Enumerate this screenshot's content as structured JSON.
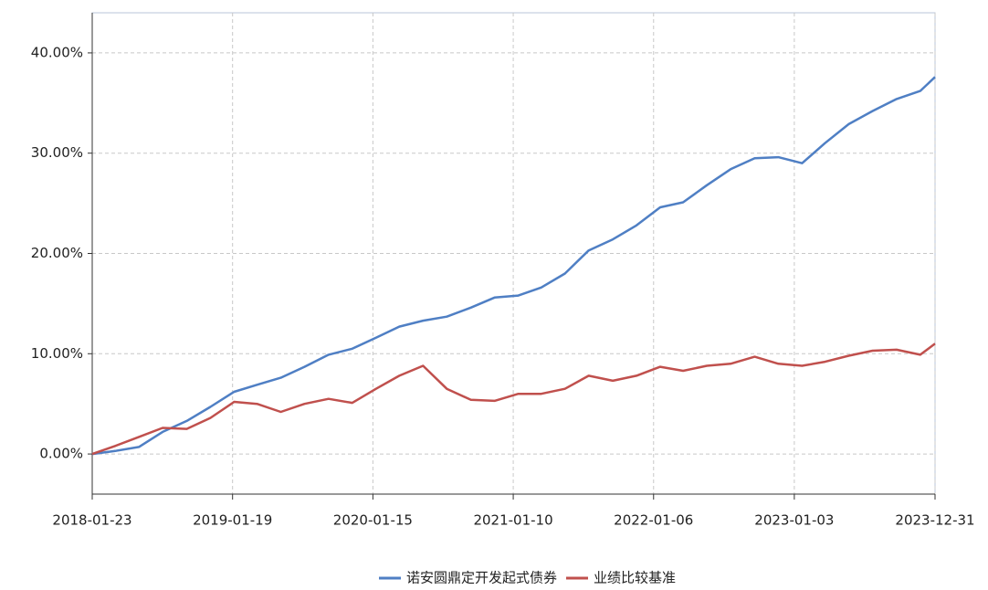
{
  "chart_data": {
    "type": "line",
    "x": [
      "2018-01-23",
      "2018-03-23",
      "2018-05-23",
      "2018-07-23",
      "2018-09-23",
      "2018-11-23",
      "2019-01-23",
      "2019-03-23",
      "2019-05-23",
      "2019-07-23",
      "2019-09-23",
      "2019-11-23",
      "2020-01-23",
      "2020-03-23",
      "2020-05-23",
      "2020-07-23",
      "2020-09-23",
      "2020-11-23",
      "2021-01-23",
      "2021-03-23",
      "2021-05-23",
      "2021-07-23",
      "2021-09-23",
      "2021-11-23",
      "2022-01-23",
      "2022-03-23",
      "2022-05-23",
      "2022-07-23",
      "2022-09-23",
      "2022-11-23",
      "2023-01-23",
      "2023-03-23",
      "2023-05-23",
      "2023-07-23",
      "2023-09-23",
      "2023-11-23",
      "2023-12-31"
    ],
    "series": [
      {
        "name": "诺安圆鼎定开发起式债券",
        "color": "#4f7fc4",
        "values": [
          0,
          0.3,
          0.7,
          2.2,
          3.3,
          4.7,
          6.2,
          6.9,
          7.6,
          8.7,
          9.9,
          10.5,
          11.6,
          12.7,
          13.3,
          13.7,
          14.6,
          15.6,
          15.8,
          16.6,
          18.0,
          20.3,
          21.4,
          22.8,
          24.6,
          25.1,
          26.8,
          28.4,
          29.5,
          29.6,
          29.0,
          31.0,
          32.9,
          34.2,
          35.4,
          36.2,
          37.6
        ]
      },
      {
        "name": "业绩比较基准",
        "color": "#c0504d",
        "values": [
          0,
          0.8,
          1.7,
          2.6,
          2.5,
          3.6,
          5.2,
          5.0,
          4.2,
          5.0,
          5.5,
          5.1,
          6.5,
          7.8,
          8.8,
          6.5,
          5.4,
          5.3,
          6.0,
          6.0,
          6.5,
          7.8,
          7.3,
          7.8,
          8.7,
          8.3,
          8.8,
          9.0,
          9.7,
          9.0,
          8.8,
          9.2,
          9.8,
          10.3,
          10.4,
          9.9,
          11.0
        ]
      }
    ],
    "xlim": [
      "2018-01-23",
      "2023-12-31"
    ],
    "xticks": [
      "2018-01-23",
      "2019-01-19",
      "2020-01-15",
      "2021-01-10",
      "2022-01-06",
      "2023-01-03",
      "2023-12-31"
    ],
    "ylim": [
      -4,
      44
    ],
    "yticks": [
      {
        "value": 0,
        "label": "0.00%"
      },
      {
        "value": 10,
        "label": "10.00%"
      },
      {
        "value": 20,
        "label": "20.00%"
      },
      {
        "value": 30,
        "label": "30.00%"
      },
      {
        "value": 40,
        "label": "40.00%"
      }
    ],
    "grid": true,
    "legend": "bottom"
  }
}
